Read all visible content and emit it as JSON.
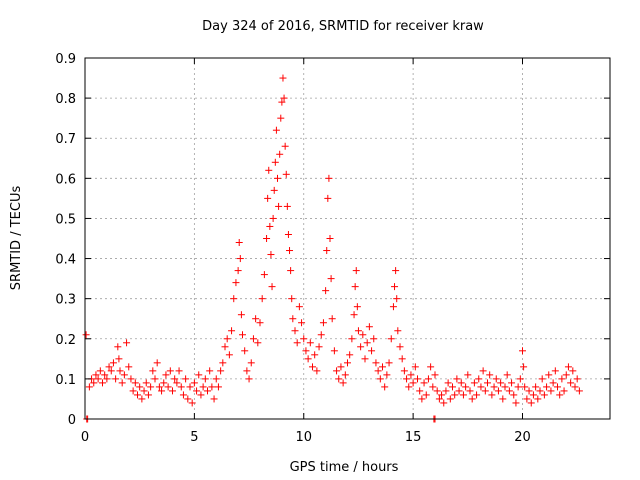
{
  "chart_data": {
    "type": "scatter",
    "title": "Day 324 of 2016, SRMTID for receiver kraw",
    "xlabel": "GPS time / hours",
    "ylabel": "SRMTID / TECUs",
    "xlim": [
      0,
      24
    ],
    "ylim": [
      0,
      0.9
    ],
    "x_ticks": [
      0,
      5,
      10,
      15,
      20
    ],
    "y_ticks": [
      0,
      0.1,
      0.2,
      0.3,
      0.4,
      0.5,
      0.6,
      0.7,
      0.8,
      0.9
    ],
    "x_tick_labels": [
      "0",
      "5",
      "10",
      "15",
      "20"
    ],
    "y_tick_labels": [
      "0",
      "0.1",
      "0.2",
      "0.3",
      "0.4",
      "0.5",
      "0.6",
      "0.7",
      "0.8",
      "0.9"
    ],
    "grid": true,
    "marker": "plus",
    "color": "#ff0000",
    "series": [
      {
        "name": "kraw",
        "points": [
          [
            0.05,
            0.21
          ],
          [
            0.08,
            0.0
          ],
          [
            0.12,
            0.0
          ],
          [
            15.95,
            0.0
          ],
          [
            16.0,
            0.0
          ],
          [
            0.2,
            0.08
          ],
          [
            0.3,
            0.1
          ],
          [
            0.4,
            0.09
          ],
          [
            0.5,
            0.11
          ],
          [
            0.6,
            0.1
          ],
          [
            0.7,
            0.12
          ],
          [
            0.8,
            0.09
          ],
          [
            0.9,
            0.11
          ],
          [
            1.0,
            0.1
          ],
          [
            1.1,
            0.13
          ],
          [
            1.2,
            0.12
          ],
          [
            1.3,
            0.14
          ],
          [
            1.4,
            0.1
          ],
          [
            1.5,
            0.18
          ],
          [
            1.55,
            0.15
          ],
          [
            1.6,
            0.12
          ],
          [
            1.7,
            0.09
          ],
          [
            1.8,
            0.11
          ],
          [
            1.9,
            0.19
          ],
          [
            2.0,
            0.13
          ],
          [
            2.1,
            0.1
          ],
          [
            2.2,
            0.07
          ],
          [
            2.3,
            0.09
          ],
          [
            2.4,
            0.06
          ],
          [
            2.5,
            0.08
          ],
          [
            2.6,
            0.05
          ],
          [
            2.7,
            0.07
          ],
          [
            2.8,
            0.09
          ],
          [
            2.9,
            0.06
          ],
          [
            3.0,
            0.08
          ],
          [
            3.1,
            0.12
          ],
          [
            3.2,
            0.1
          ],
          [
            3.3,
            0.14
          ],
          [
            3.4,
            0.08
          ],
          [
            3.5,
            0.07
          ],
          [
            3.6,
            0.09
          ],
          [
            3.7,
            0.11
          ],
          [
            3.8,
            0.08
          ],
          [
            3.9,
            0.12
          ],
          [
            4.0,
            0.07
          ],
          [
            4.1,
            0.1
          ],
          [
            4.2,
            0.09
          ],
          [
            4.3,
            0.12
          ],
          [
            4.4,
            0.08
          ],
          [
            4.5,
            0.06
          ],
          [
            4.6,
            0.1
          ],
          [
            4.7,
            0.05
          ],
          [
            4.8,
            0.08
          ],
          [
            4.9,
            0.04
          ],
          [
            5.0,
            0.09
          ],
          [
            5.1,
            0.07
          ],
          [
            5.2,
            0.11
          ],
          [
            5.3,
            0.06
          ],
          [
            5.4,
            0.08
          ],
          [
            5.5,
            0.1
          ],
          [
            5.6,
            0.07
          ],
          [
            5.7,
            0.12
          ],
          [
            5.8,
            0.08
          ],
          [
            5.9,
            0.05
          ],
          [
            6.0,
            0.1
          ],
          [
            6.1,
            0.08
          ],
          [
            6.2,
            0.12
          ],
          [
            6.3,
            0.14
          ],
          [
            6.4,
            0.18
          ],
          [
            6.5,
            0.2
          ],
          [
            6.6,
            0.16
          ],
          [
            6.7,
            0.22
          ],
          [
            6.8,
            0.3
          ],
          [
            6.9,
            0.34
          ],
          [
            7.0,
            0.37
          ],
          [
            7.05,
            0.44
          ],
          [
            7.1,
            0.4
          ],
          [
            7.15,
            0.26
          ],
          [
            7.2,
            0.21
          ],
          [
            7.3,
            0.17
          ],
          [
            7.4,
            0.12
          ],
          [
            7.5,
            0.1
          ],
          [
            7.6,
            0.14
          ],
          [
            7.7,
            0.2
          ],
          [
            7.8,
            0.25
          ],
          [
            7.9,
            0.19
          ],
          [
            8.0,
            0.24
          ],
          [
            8.1,
            0.3
          ],
          [
            8.2,
            0.36
          ],
          [
            8.3,
            0.45
          ],
          [
            8.35,
            0.55
          ],
          [
            8.4,
            0.62
          ],
          [
            8.45,
            0.48
          ],
          [
            8.5,
            0.41
          ],
          [
            8.55,
            0.33
          ],
          [
            8.6,
            0.5
          ],
          [
            8.65,
            0.57
          ],
          [
            8.7,
            0.64
          ],
          [
            8.75,
            0.72
          ],
          [
            8.8,
            0.6
          ],
          [
            8.85,
            0.53
          ],
          [
            8.9,
            0.66
          ],
          [
            8.95,
            0.75
          ],
          [
            9.0,
            0.79
          ],
          [
            9.05,
            0.85
          ],
          [
            9.1,
            0.8
          ],
          [
            9.15,
            0.68
          ],
          [
            9.2,
            0.61
          ],
          [
            9.25,
            0.53
          ],
          [
            9.3,
            0.46
          ],
          [
            9.35,
            0.42
          ],
          [
            9.4,
            0.37
          ],
          [
            9.45,
            0.3
          ],
          [
            9.5,
            0.25
          ],
          [
            9.6,
            0.22
          ],
          [
            9.7,
            0.19
          ],
          [
            9.8,
            0.28
          ],
          [
            9.9,
            0.24
          ],
          [
            10.0,
            0.2
          ],
          [
            10.1,
            0.17
          ],
          [
            10.2,
            0.15
          ],
          [
            10.3,
            0.19
          ],
          [
            10.4,
            0.13
          ],
          [
            10.5,
            0.16
          ],
          [
            10.6,
            0.12
          ],
          [
            10.7,
            0.18
          ],
          [
            10.8,
            0.21
          ],
          [
            10.9,
            0.24
          ],
          [
            11.0,
            0.32
          ],
          [
            11.05,
            0.42
          ],
          [
            11.1,
            0.55
          ],
          [
            11.15,
            0.6
          ],
          [
            11.2,
            0.45
          ],
          [
            11.25,
            0.35
          ],
          [
            11.3,
            0.25
          ],
          [
            11.4,
            0.17
          ],
          [
            11.5,
            0.12
          ],
          [
            11.6,
            0.1
          ],
          [
            11.7,
            0.13
          ],
          [
            11.8,
            0.09
          ],
          [
            11.9,
            0.11
          ],
          [
            12.0,
            0.14
          ],
          [
            12.1,
            0.16
          ],
          [
            12.2,
            0.2
          ],
          [
            12.3,
            0.26
          ],
          [
            12.35,
            0.33
          ],
          [
            12.4,
            0.37
          ],
          [
            12.45,
            0.28
          ],
          [
            12.5,
            0.22
          ],
          [
            12.6,
            0.18
          ],
          [
            12.7,
            0.21
          ],
          [
            12.8,
            0.15
          ],
          [
            12.9,
            0.19
          ],
          [
            13.0,
            0.23
          ],
          [
            13.1,
            0.17
          ],
          [
            13.2,
            0.2
          ],
          [
            13.3,
            0.14
          ],
          [
            13.4,
            0.12
          ],
          [
            13.5,
            0.1
          ],
          [
            13.6,
            0.13
          ],
          [
            13.7,
            0.08
          ],
          [
            13.8,
            0.11
          ],
          [
            13.9,
            0.14
          ],
          [
            14.0,
            0.2
          ],
          [
            14.1,
            0.28
          ],
          [
            14.15,
            0.33
          ],
          [
            14.2,
            0.37
          ],
          [
            14.25,
            0.3
          ],
          [
            14.3,
            0.22
          ],
          [
            14.4,
            0.18
          ],
          [
            14.5,
            0.15
          ],
          [
            14.6,
            0.12
          ],
          [
            14.7,
            0.1
          ],
          [
            14.8,
            0.08
          ],
          [
            14.9,
            0.11
          ],
          [
            15.0,
            0.09
          ],
          [
            15.1,
            0.13
          ],
          [
            15.2,
            0.1
          ],
          [
            15.3,
            0.07
          ],
          [
            15.4,
            0.05
          ],
          [
            15.5,
            0.09
          ],
          [
            15.6,
            0.06
          ],
          [
            15.7,
            0.1
          ],
          [
            15.8,
            0.13
          ],
          [
            15.9,
            0.08
          ],
          [
            16.0,
            0.11
          ],
          [
            16.1,
            0.07
          ],
          [
            16.2,
            0.05
          ],
          [
            16.3,
            0.06
          ],
          [
            16.4,
            0.04
          ],
          [
            16.5,
            0.07
          ],
          [
            16.6,
            0.09
          ],
          [
            16.7,
            0.05
          ],
          [
            16.8,
            0.08
          ],
          [
            16.9,
            0.06
          ],
          [
            17.0,
            0.1
          ],
          [
            17.1,
            0.07
          ],
          [
            17.2,
            0.09
          ],
          [
            17.3,
            0.06
          ],
          [
            17.4,
            0.08
          ],
          [
            17.5,
            0.11
          ],
          [
            17.6,
            0.07
          ],
          [
            17.7,
            0.05
          ],
          [
            17.8,
            0.09
          ],
          [
            17.9,
            0.06
          ],
          [
            18.0,
            0.1
          ],
          [
            18.1,
            0.08
          ],
          [
            18.2,
            0.12
          ],
          [
            18.3,
            0.07
          ],
          [
            18.4,
            0.09
          ],
          [
            18.5,
            0.11
          ],
          [
            18.6,
            0.06
          ],
          [
            18.7,
            0.08
          ],
          [
            18.8,
            0.1
          ],
          [
            18.9,
            0.07
          ],
          [
            19.0,
            0.09
          ],
          [
            19.1,
            0.05
          ],
          [
            19.2,
            0.08
          ],
          [
            19.3,
            0.11
          ],
          [
            19.4,
            0.07
          ],
          [
            19.5,
            0.09
          ],
          [
            19.6,
            0.06
          ],
          [
            19.7,
            0.04
          ],
          [
            19.8,
            0.08
          ],
          [
            19.9,
            0.1
          ],
          [
            20.0,
            0.17
          ],
          [
            20.05,
            0.13
          ],
          [
            20.1,
            0.08
          ],
          [
            20.2,
            0.05
          ],
          [
            20.3,
            0.07
          ],
          [
            20.4,
            0.04
          ],
          [
            20.5,
            0.06
          ],
          [
            20.6,
            0.08
          ],
          [
            20.7,
            0.05
          ],
          [
            20.8,
            0.07
          ],
          [
            20.9,
            0.1
          ],
          [
            21.0,
            0.06
          ],
          [
            21.1,
            0.08
          ],
          [
            21.2,
            0.11
          ],
          [
            21.3,
            0.07
          ],
          [
            21.4,
            0.09
          ],
          [
            21.5,
            0.12
          ],
          [
            21.6,
            0.08
          ],
          [
            21.7,
            0.06
          ],
          [
            21.8,
            0.1
          ],
          [
            21.9,
            0.07
          ],
          [
            22.0,
            0.11
          ],
          [
            22.1,
            0.13
          ],
          [
            22.2,
            0.09
          ],
          [
            22.3,
            0.12
          ],
          [
            22.4,
            0.08
          ],
          [
            22.5,
            0.1
          ],
          [
            22.6,
            0.07
          ]
        ]
      }
    ]
  }
}
